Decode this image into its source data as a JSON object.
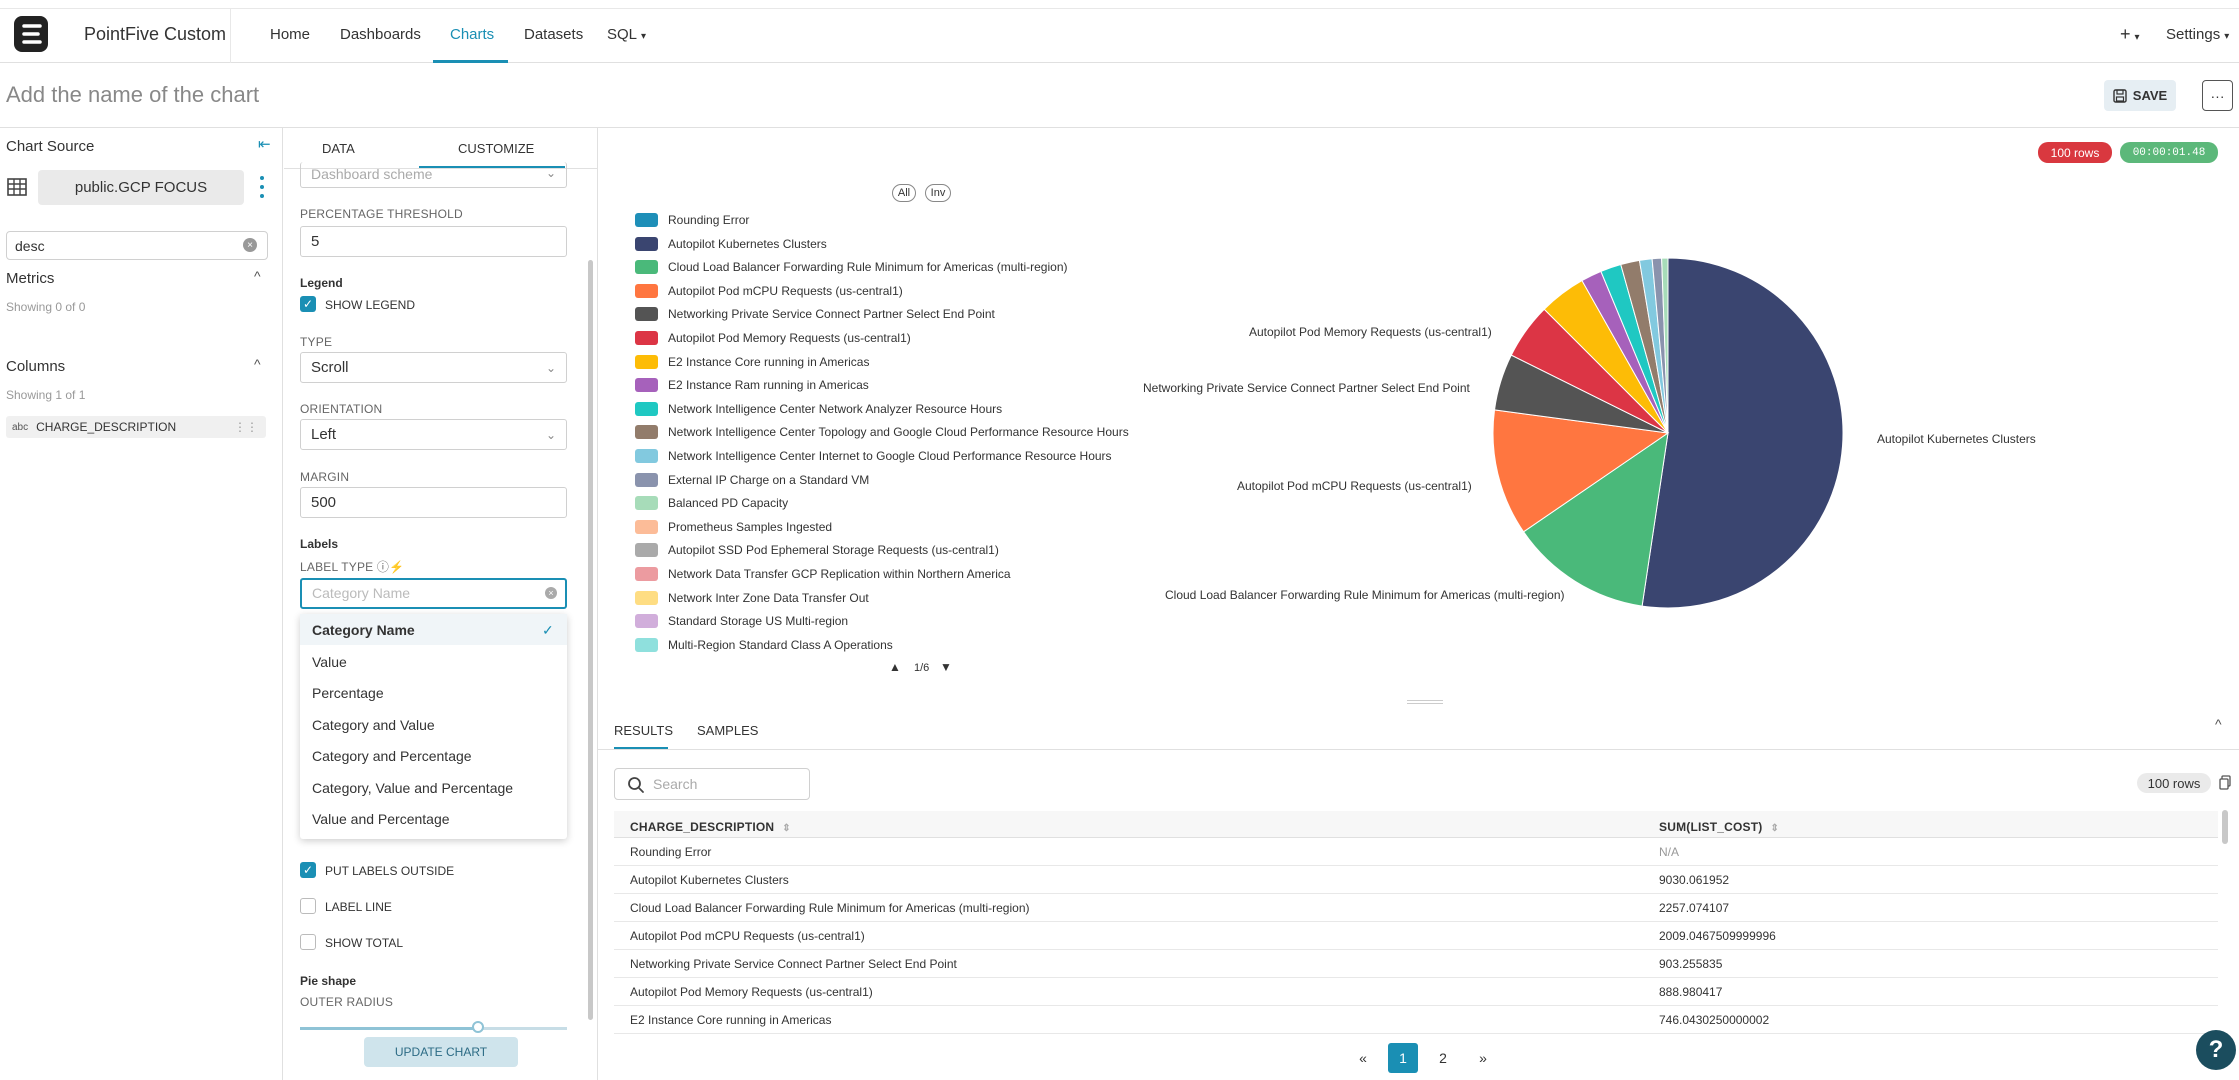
{
  "app": {
    "brand": "PointFive Custom"
  },
  "nav": {
    "items": [
      {
        "label": "Home"
      },
      {
        "label": "Dashboards"
      },
      {
        "label": "Charts"
      },
      {
        "label": "Datasets"
      },
      {
        "label": "SQL"
      }
    ],
    "active": "Charts",
    "plus": "+",
    "settings": "Settings"
  },
  "header": {
    "chart_name_placeholder": "Add the name of the chart",
    "save_label": "SAVE",
    "more_label": "···"
  },
  "source": {
    "title": "Chart Source",
    "dataset": "public.GCP FOCUS",
    "search_value": "desc",
    "metrics_title": "Metrics",
    "metrics_sub": "Showing 0 of 0",
    "columns_title": "Columns",
    "columns_sub": "Showing 1 of 1",
    "column": {
      "type": "abc",
      "name": "CHARGE_DESCRIPTION"
    }
  },
  "customize": {
    "tabs": [
      "DATA",
      "CUSTOMIZE"
    ],
    "active_tab": "CUSTOMIZE",
    "color_scheme_placeholder": "Dashboard scheme",
    "pct_threshold_label": "PERCENTAGE THRESHOLD",
    "pct_threshold_value": "5",
    "legend_head": "Legend",
    "show_legend": "SHOW LEGEND",
    "type_label": "TYPE",
    "type_value": "Scroll",
    "orientation_label": "ORIENTATION",
    "orientation_value": "Left",
    "margin_label": "MARGIN",
    "margin_value": "500",
    "labels_head": "Labels",
    "label_type_label": "LABEL TYPE",
    "label_type_placeholder": "Category Name",
    "label_type_options": [
      "Category Name",
      "Value",
      "Percentage",
      "Category and Value",
      "Category and Percentage",
      "Category, Value and Percentage",
      "Value and Percentage"
    ],
    "put_labels_outside": "PUT LABELS OUTSIDE",
    "label_line": "LABEL LINE",
    "show_total": "SHOW TOTAL",
    "pie_shape_head": "Pie shape",
    "outer_radius_label": "OUTER RADIUS",
    "update_btn": "UPDATE CHART"
  },
  "status": {
    "rows": "100 rows",
    "time": "00:00:01.48",
    "rows_color": "#d9383f",
    "time_color": "#5cb87a"
  },
  "legend": {
    "all": "All",
    "inv": "Inv",
    "page": "1/6",
    "items": [
      {
        "label": "Rounding Error",
        "color": "#1e8fb8"
      },
      {
        "label": "Autopilot Kubernetes Clusters",
        "color": "#3a4570"
      },
      {
        "label": "Cloud Load Balancer Forwarding Rule Minimum for Americas (multi-region)",
        "color": "#4ab97a"
      },
      {
        "label": "Autopilot Pod mCPU Requests (us-central1)",
        "color": "#ff7640"
      },
      {
        "label": "Networking Private Service Connect Partner Select End Point",
        "color": "#545454"
      },
      {
        "label": "Autopilot Pod Memory Requests (us-central1)",
        "color": "#dc3545"
      },
      {
        "label": "E2 Instance Core running in Americas",
        "color": "#fdbc06"
      },
      {
        "label": "E2 Instance Ram running in Americas",
        "color": "#a661bb"
      },
      {
        "label": "Network Intelligence Center Network Analyzer Resource Hours",
        "color": "#1fc8c2"
      },
      {
        "label": "Network Intelligence Center Topology and Google Cloud Performance Resource Hours",
        "color": "#927c6b"
      },
      {
        "label": "Network Intelligence Center Internet to Google Cloud Performance Resource Hours",
        "color": "#82c9df"
      },
      {
        "label": "External IP Charge on a Standard VM",
        "color": "#8a93ad"
      },
      {
        "label": "Balanced PD Capacity",
        "color": "#a7dcb9"
      },
      {
        "label": "Prometheus Samples Ingested",
        "color": "#fcbc98"
      },
      {
        "label": "Autopilot SSD Pod Ephemeral Storage Requests (us-central1)",
        "color": "#aaaaaa"
      },
      {
        "label": "Network Data Transfer GCP Replication within Northern America",
        "color": "#ec9ba0"
      },
      {
        "label": "Network Inter Zone Data Transfer Out",
        "color": "#fedd83"
      },
      {
        "label": "Standard Storage US Multi-region",
        "color": "#d1aedb"
      },
      {
        "label": "Multi-Region Standard Class A Operations",
        "color": "#8fe0dd"
      }
    ]
  },
  "chart_data": {
    "type": "pie",
    "categories": [
      "Rounding Error",
      "Autopilot Kubernetes Clusters",
      "Cloud Load Balancer Forwarding Rule Minimum for Americas (multi-region)",
      "Autopilot Pod mCPU Requests (us-central1)",
      "Networking Private Service Connect Partner Select End Point",
      "Autopilot Pod Memory Requests (us-central1)",
      "E2 Instance Core running in Americas",
      "E2 Instance Ram running in Americas",
      "Network Intelligence Center Network Analyzer Resource Hours",
      "Network Intelligence Center Topology and Google Cloud Performance Resource Hours",
      "Network Intelligence Center Internet to Google Cloud Performance Resource Hours",
      "External IP Charge on a Standard VM",
      "Balanced PD Capacity"
    ],
    "values": [
      0,
      9030.061952,
      2257.074107,
      2009.0467509999996,
      903.255835,
      888.980417,
      746.0430250000002,
      330,
      330,
      300,
      200,
      150,
      100
    ],
    "outside_labels": [
      "Autopilot Kubernetes Clusters",
      "Cloud Load Balancer Forwarding Rule Minimum for Americas (multi-region)",
      "Autopilot Pod mCPU Requests (us-central1)",
      "Networking Private Service Connect Partner Select End Point",
      "Autopilot Pod Memory Requests (us-central1)"
    ]
  },
  "results": {
    "tabs": [
      "RESULTS",
      "SAMPLES"
    ],
    "search_placeholder": "Search",
    "rows_pill": "100 rows",
    "columns": [
      "CHARGE_DESCRIPTION",
      "SUM(LIST_COST)"
    ],
    "rows": [
      [
        "Rounding Error",
        "N/A"
      ],
      [
        "Autopilot Kubernetes Clusters",
        "9030.061952"
      ],
      [
        "Cloud Load Balancer Forwarding Rule Minimum for Americas (multi-region)",
        "2257.074107"
      ],
      [
        "Autopilot Pod mCPU Requests (us-central1)",
        "2009.0467509999996"
      ],
      [
        "Networking Private Service Connect Partner Select End Point",
        "903.255835"
      ],
      [
        "Autopilot Pod Memory Requests (us-central1)",
        "888.980417"
      ],
      [
        "E2 Instance Core running in Americas",
        "746.0430250000002"
      ]
    ],
    "pagination": {
      "prev": "«",
      "pages": [
        "1",
        "2"
      ],
      "next": "»",
      "current": "1"
    }
  },
  "help": "?"
}
